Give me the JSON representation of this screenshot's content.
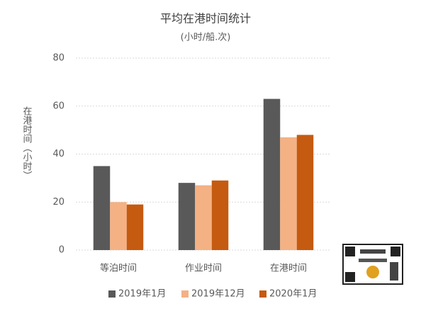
{
  "chart_data": {
    "type": "bar",
    "title": "平均在港时间统计",
    "subtitle": "(小时/船.次)",
    "y_label": "在港时间（小时）",
    "categories": [
      "等泊时间",
      "作业时间",
      "在港时间"
    ],
    "series": [
      {
        "name": "2019年1月",
        "color": "#595959",
        "values": [
          35,
          28,
          63
        ]
      },
      {
        "name": "2019年12月",
        "color": "#f4b183",
        "values": [
          20,
          27,
          47
        ]
      },
      {
        "name": "2020年1月",
        "color": "#c55a11",
        "values": [
          19,
          29,
          48
        ]
      }
    ],
    "ylim": [
      0,
      80
    ],
    "yticks": [
      0,
      20,
      40,
      60,
      80
    ],
    "grid": true,
    "legend": "bottom"
  }
}
